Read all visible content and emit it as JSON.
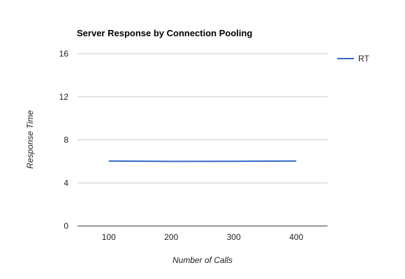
{
  "chart_data": {
    "type": "line",
    "title": "Server Response by Connection Pooling",
    "xlabel": "Number of Calls",
    "ylabel": "Response Time",
    "x": [
      100,
      200,
      300,
      400
    ],
    "series": [
      {
        "name": "RT",
        "values": [
          6.03,
          6.0,
          6.01,
          6.03
        ],
        "color": "#3366cc"
      }
    ],
    "xticks": [
      "100",
      "200",
      "300",
      "400"
    ],
    "yticks": [
      "0",
      "4",
      "8",
      "12",
      "16"
    ],
    "ylim": [
      0,
      16
    ],
    "xlim": [
      50,
      450
    ],
    "grid": true,
    "legend_position": "right"
  }
}
